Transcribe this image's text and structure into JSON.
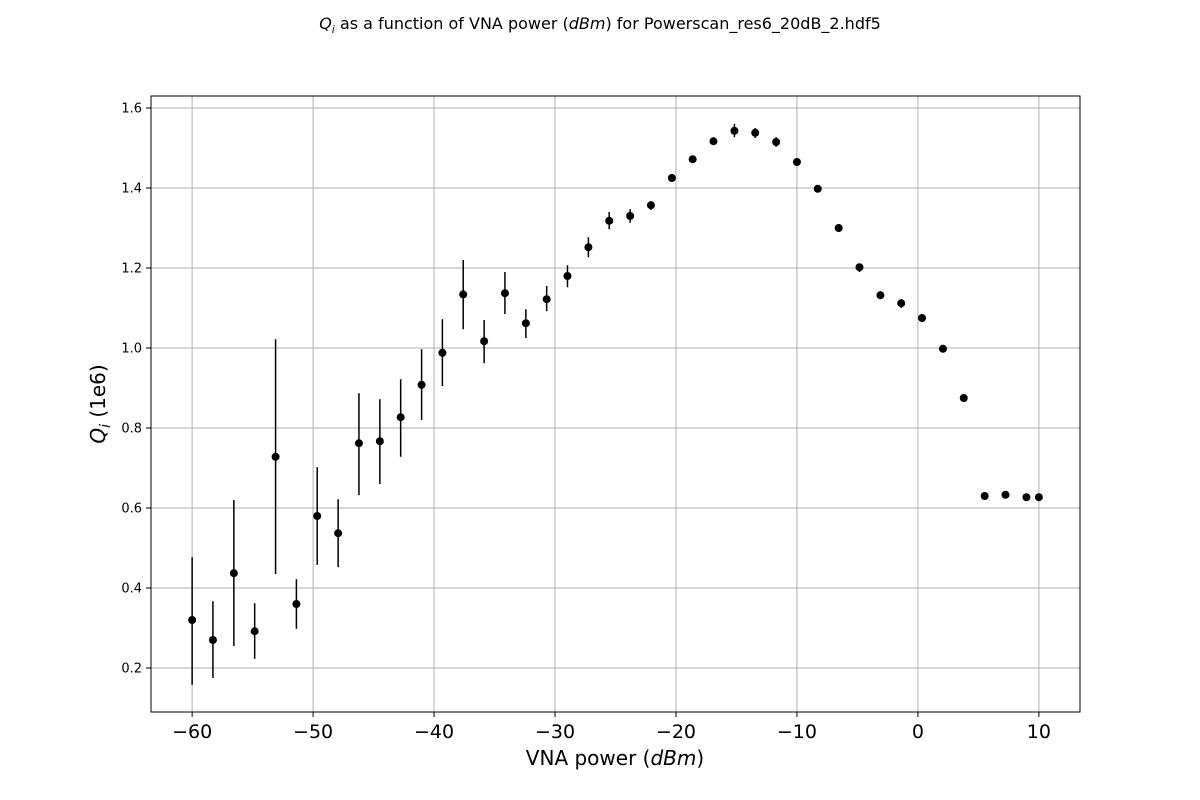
{
  "chart_data": {
    "type": "scatter",
    "title": {
      "prefix": "Q",
      "prefix_sub": "i",
      "main": " as a function of VNA power (",
      "unit": "dBm",
      "suffix": ") for Powerscan_res6_20dB_2.hdf5"
    },
    "xlabel": {
      "text": "VNA power (",
      "unit": "dBm",
      "close": ")"
    },
    "ylabel": {
      "sym": "Q",
      "sub": "i",
      "rest": " (1e6)"
    },
    "xlim": [
      -63.4,
      13.4
    ],
    "ylim": [
      0.09,
      1.63
    ],
    "x_ticks": [
      -60,
      -50,
      -40,
      -30,
      -20,
      -10,
      0,
      10
    ],
    "x_tick_labels": [
      "−60",
      "−50",
      "−40",
      "−30",
      "−20",
      "−10",
      "0",
      "10"
    ],
    "y_ticks": [
      0.2,
      0.4,
      0.6,
      0.8,
      1.0,
      1.2,
      1.4,
      1.6
    ],
    "y_tick_labels": [
      "0.2",
      "0.4",
      "0.6",
      "0.8",
      "1.0",
      "1.2",
      "1.4",
      "1.6"
    ],
    "grid": true,
    "marker_color": "#000000",
    "series": [
      {
        "x": [
          -60.0,
          -58.28,
          -56.55,
          -54.83,
          -53.1,
          -51.38,
          -49.66,
          -47.93,
          -46.21,
          -44.48,
          -42.76,
          -41.03,
          -39.31,
          -37.59,
          -35.86,
          -34.14,
          -32.41,
          -30.69,
          -28.97,
          -27.24,
          -25.52,
          -23.79,
          -22.07,
          -20.34,
          -18.62,
          -16.9,
          -15.17,
          -13.45,
          -11.72,
          -10.0,
          -8.28,
          -6.55,
          -4.83,
          -3.1,
          -1.38,
          0.34,
          2.07,
          3.79,
          5.52,
          7.24,
          8.97,
          10.0
        ],
        "y": [
          0.32,
          0.27,
          0.437,
          0.292,
          0.728,
          0.36,
          0.58,
          0.537,
          0.762,
          0.767,
          0.827,
          0.908,
          0.988,
          1.134,
          1.017,
          1.137,
          1.062,
          1.122,
          1.18,
          1.252,
          1.318,
          1.33,
          1.357,
          1.425,
          1.472,
          1.517,
          1.543,
          1.538,
          1.515,
          1.465,
          1.398,
          1.3,
          1.202,
          1.132,
          1.112,
          1.075,
          0.998,
          0.875,
          0.63,
          0.633,
          0.627,
          0.627
        ],
        "err_low": [
          0.158,
          0.175,
          0.255,
          0.223,
          0.435,
          0.298,
          0.458,
          0.452,
          0.632,
          0.66,
          0.728,
          0.82,
          0.905,
          1.047,
          0.962,
          1.085,
          1.025,
          1.092,
          1.152,
          1.227,
          1.297,
          1.313,
          1.345,
          1.415,
          1.465,
          1.51,
          1.527,
          1.525,
          1.503,
          1.455,
          1.39,
          1.29,
          1.19,
          1.122,
          1.1,
          1.065,
          0.99,
          0.868,
          0.625,
          0.628,
          0.622,
          0.622
        ],
        "err_high": [
          0.477,
          0.367,
          0.62,
          0.362,
          1.022,
          0.422,
          0.702,
          0.622,
          0.887,
          0.872,
          0.922,
          0.997,
          1.072,
          1.22,
          1.07,
          1.19,
          1.097,
          1.155,
          1.207,
          1.277,
          1.34,
          1.347,
          1.367,
          1.435,
          1.48,
          1.525,
          1.56,
          1.55,
          1.527,
          1.475,
          1.405,
          1.31,
          1.21,
          1.142,
          1.122,
          1.085,
          1.005,
          0.882,
          0.635,
          0.638,
          0.632,
          0.632
        ]
      }
    ]
  }
}
